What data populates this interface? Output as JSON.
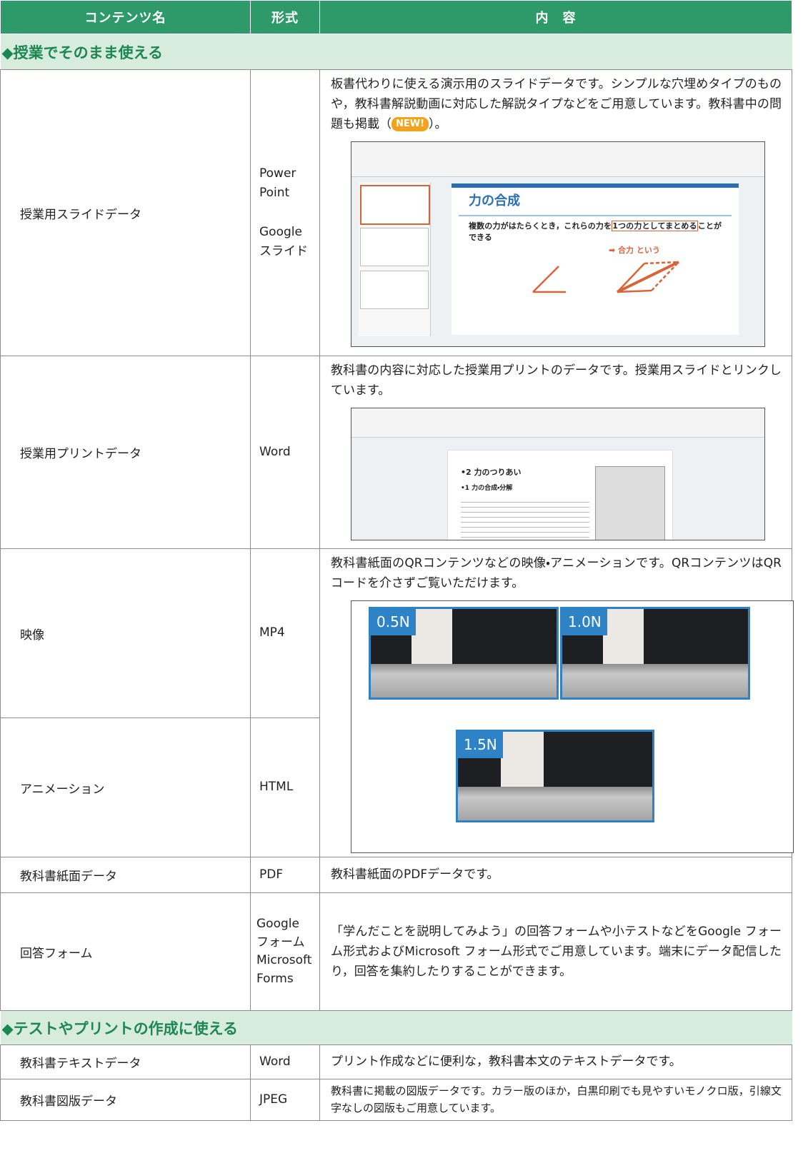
{
  "table": {
    "header": [
      "コンテンツ名",
      "形式",
      "内　容"
    ],
    "sections": [
      {
        "title": "◆授業でそのまま使える",
        "rows": [
          {
            "name": "授業用スライドデータ",
            "format": [
              "Power",
              "Point",
              "Google",
              "スライド"
            ],
            "description": "板書代わりに使える演示用のスライドデータです。シンプルな穴埋めタイプのものや，教科書解説動画に対応した解説タイプなどをご用意しています。教科書中の問題も掲載（",
            "badge": "NEW!",
            "description_end": "）。",
            "image": {
              "title": "力の合成",
              "text": "複数の力がはたらくとき，これらの力を",
              "highlight": "1つの力としてまとめる",
              "text_end": "ことができる",
              "note": "➡ 合力 という"
            }
          },
          {
            "name": "授業用プリントデータ",
            "format": [
              "Word"
            ],
            "description": "教科書の内容に対応した授業用プリントのデータです。授業用スライドとリンクしています。",
            "image": {
              "heading": "•2 力のつりあい",
              "subheading": "•1 力の合成・分解"
            }
          },
          {
            "name": "映像",
            "format": [
              "MP4"
            ],
            "description": "教科書紙面のQRコンテンツなどの映像・アニメーションです。QRコンテンツはQRコードを介さずご覧いただけます。",
            "image": {
              "labels": [
                "0.5N",
                "1.0N",
                "1.5N"
              ]
            }
          },
          {
            "name": "アニメーション",
            "format": [
              "HTML"
            ]
          },
          {
            "name": "教科書紙面データ",
            "format": [
              "PDF"
            ],
            "description": "教科書紙面のPDFデータです。"
          },
          {
            "name": "回答フォーム",
            "format": [
              "Google",
              "フォーム",
              "Microsoft",
              "Forms"
            ],
            "description": "「学んだことを説明してみよう」の回答フォームや小テストなどをGoogle フォーム形式およびMicrosoft フォーム形式でご用意しています。端末にデータ配信したり，回答を集約したりすることができます。"
          }
        ]
      },
      {
        "title": "◆テストやプリントの作成に使える",
        "rows": [
          {
            "name": "教科書テキストデータ",
            "format": [
              "Word"
            ],
            "description": "プリント作成などに便利な，教科書本文のテキストデータです。"
          },
          {
            "name": "教科書図版データ",
            "format": [
              "JPEG"
            ],
            "description": "教科書に掲載の図版データです。カラー版のほか，白黒印刷でも見やすいモノクロ版，引線文字なしの図版もご用意しています。"
          }
        ]
      }
    ]
  }
}
